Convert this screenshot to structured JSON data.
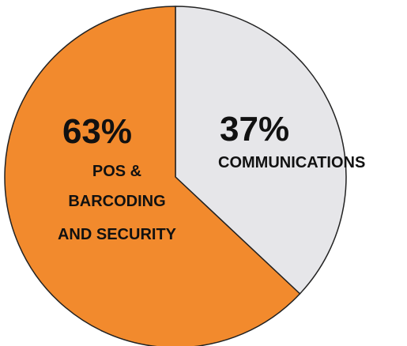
{
  "chart_data": {
    "type": "pie",
    "slices": [
      {
        "value": 37,
        "value_label": "37%",
        "label_lines": [
          "COMMUNICATIONS"
        ],
        "color": "#e6e6e9"
      },
      {
        "value": 63,
        "value_label": "63%",
        "label_lines": [
          "POS &",
          "BARCODING",
          "AND SECURITY"
        ],
        "color": "#f28a2d"
      }
    ]
  },
  "style": {
    "outline_color": "#222222"
  }
}
